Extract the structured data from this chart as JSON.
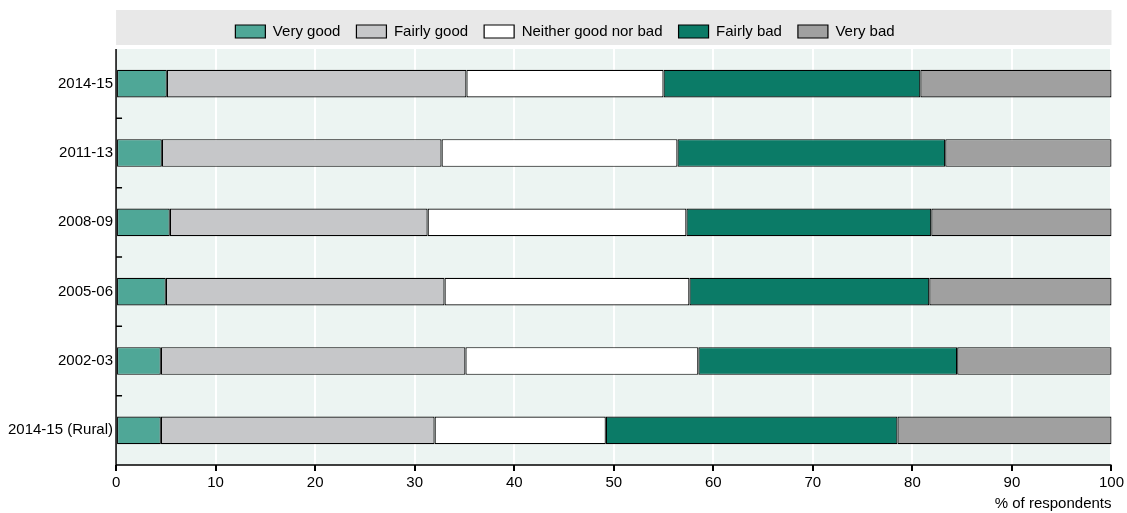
{
  "chart_data": {
    "type": "bar",
    "orientation": "horizontal",
    "stacked": true,
    "categories": [
      "2014-15",
      "2011-13",
      "2008-09",
      "2005-06",
      "2002-03",
      "2014-15 (Rural)"
    ],
    "series": [
      {
        "name": "Very good",
        "color": "#4fa797",
        "values": [
          5.1,
          4.6,
          5.4,
          5.0,
          4.5,
          4.5
        ]
      },
      {
        "name": "Fairly good",
        "color": "#c6c7c9",
        "values": [
          30.1,
          28.1,
          25.9,
          28.0,
          30.6,
          27.5
        ]
      },
      {
        "name": "Neither good nor bad",
        "color": "#ffffff",
        "values": [
          19.8,
          23.7,
          26.0,
          24.6,
          23.4,
          17.2
        ]
      },
      {
        "name": "Fairly bad",
        "color": "#0b7b67",
        "values": [
          25.8,
          26.9,
          24.6,
          24.1,
          26.0,
          29.3
        ]
      },
      {
        "name": "Very bad",
        "color": "#a0a0a0",
        "values": [
          19.2,
          16.7,
          18.1,
          18.3,
          15.5,
          21.5
        ]
      }
    ],
    "xlabel": "% of respondents",
    "xlim": [
      0,
      100
    ],
    "xticks": [
      0,
      10,
      20,
      30,
      40,
      50,
      60,
      70,
      80,
      90,
      100
    ],
    "grid": "x",
    "legend": "top"
  }
}
